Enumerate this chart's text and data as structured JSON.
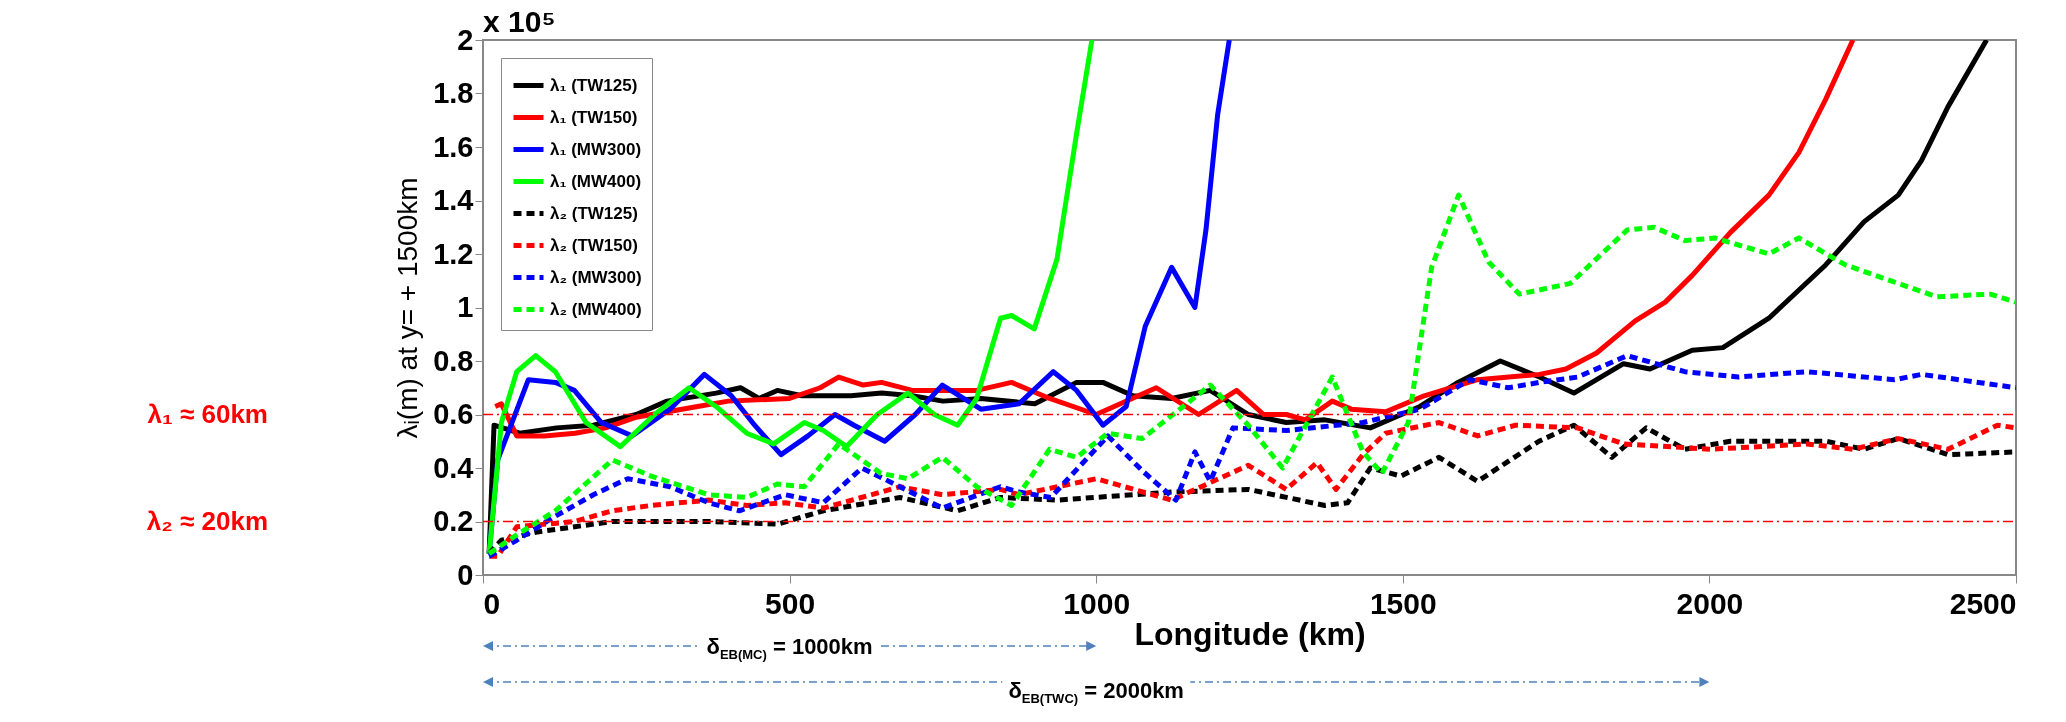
{
  "chart_data": {
    "type": "line",
    "xlabel": "Longitude (km)",
    "ylabel": "λᵢ(m) at y= + 1500km",
    "xlim": [
      0,
      2500
    ],
    "xticks": [
      0,
      500,
      1000,
      1500,
      2000,
      2500
    ],
    "ylim": [
      0,
      2
    ],
    "yticks": [
      0,
      0.2,
      0.4,
      0.6,
      0.8,
      1,
      1.2,
      1.4,
      1.6,
      1.8,
      2
    ],
    "grid": false,
    "legend": "top left",
    "series": [
      {
        "name": "λ₁ (TW125)",
        "color": "#000000",
        "line_style": "solid",
        "x": [
          10,
          18,
          60,
          120,
          180,
          250,
          300,
          380,
          420,
          450,
          480,
          520,
          600,
          650,
          700,
          750,
          812,
          900,
          968,
          1011,
          1060,
          1123,
          1186,
          1248,
          1310,
          1373,
          1447,
          1528,
          1590,
          1659,
          1723,
          1779,
          1860,
          1903,
          1972,
          2022,
          2097,
          2190,
          2252,
          2308,
          2346,
          2389,
          2452
        ],
        "values": [
          0.08,
          0.56,
          0.53,
          0.55,
          0.56,
          0.6,
          0.65,
          0.68,
          0.7,
          0.66,
          0.69,
          0.67,
          0.67,
          0.68,
          0.67,
          0.65,
          0.66,
          0.64,
          0.72,
          0.72,
          0.67,
          0.66,
          0.69,
          0.6,
          0.57,
          0.58,
          0.55,
          0.63,
          0.72,
          0.8,
          0.74,
          0.68,
          0.79,
          0.77,
          0.84,
          0.85,
          0.96,
          1.16,
          1.32,
          1.42,
          1.55,
          1.75,
          2
        ]
      },
      {
        "name": "λ₁ (TW150)",
        "color": "#ff0000",
        "line_style": "solid",
        "x": [
          20,
          30,
          55,
          100,
          150,
          200,
          250,
          350,
          400,
          500,
          550,
          580,
          620,
          650,
          700,
          805,
          862,
          924,
          1000,
          1098,
          1167,
          1229,
          1273,
          1310,
          1341,
          1385,
          1416,
          1472,
          1535,
          1622,
          1723,
          1766,
          1816,
          1879,
          1928,
          1972,
          2034,
          2097,
          2146,
          2190,
          2234
        ],
        "values": [
          0.63,
          0.64,
          0.52,
          0.52,
          0.53,
          0.55,
          0.59,
          0.63,
          0.65,
          0.66,
          0.7,
          0.74,
          0.71,
          0.72,
          0.69,
          0.69,
          0.72,
          0.66,
          0.6,
          0.7,
          0.6,
          0.69,
          0.6,
          0.6,
          0.58,
          0.65,
          0.62,
          0.61,
          0.67,
          0.73,
          0.75,
          0.77,
          0.83,
          0.95,
          1.02,
          1.12,
          1.28,
          1.42,
          1.58,
          1.78,
          2
        ]
      },
      {
        "name": "λ₁ (MW300)",
        "color": "#0000ff",
        "line_style": "solid",
        "x": [
          10,
          24,
          74,
          118,
          149,
          193,
          243,
          305,
          361,
          405,
          443,
          486,
          530,
          574,
          605,
          655,
          705,
          749,
          812,
          874,
          930,
          968,
          1011,
          1049,
          1080,
          1123,
          1161,
          1179,
          1198,
          1217
        ],
        "values": [
          0.08,
          0.43,
          0.73,
          0.72,
          0.69,
          0.57,
          0.52,
          0.62,
          0.75,
          0.67,
          0.56,
          0.45,
          0.52,
          0.6,
          0.56,
          0.5,
          0.6,
          0.71,
          0.62,
          0.64,
          0.76,
          0.69,
          0.56,
          0.63,
          0.93,
          1.15,
          1,
          1.29,
          1.72,
          2
        ]
      },
      {
        "name": "λ₁ (MW400)",
        "color": "#00ff00",
        "line_style": "solid",
        "x": [
          10,
          30,
          55,
          86,
          118,
          168,
          224,
          280,
          336,
          380,
          430,
          474,
          524,
          555,
          593,
          643,
          693,
          736,
          774,
          805,
          844,
          862,
          899,
          936,
          968,
          993
        ],
        "values": [
          0.08,
          0.57,
          0.76,
          0.82,
          0.76,
          0.57,
          0.48,
          0.6,
          0.7,
          0.63,
          0.53,
          0.49,
          0.57,
          0.54,
          0.48,
          0.6,
          0.68,
          0.6,
          0.56,
          0.66,
          0.96,
          0.97,
          0.92,
          1.18,
          1.65,
          2
        ]
      },
      {
        "name": "λ₂ (TW125)",
        "color": "#000000",
        "line_style": "dashed",
        "x": [
          10,
          30,
          86,
          211,
          368,
          480,
          555,
          680,
          774,
          844,
          936,
          1123,
          1248,
          1373,
          1410,
          1447,
          1497,
          1559,
          1622,
          1722,
          1779,
          1841,
          1897,
          1960,
          2034,
          2190,
          2252,
          2308,
          2389,
          2500
        ],
        "values": [
          0.08,
          0.13,
          0.16,
          0.2,
          0.2,
          0.19,
          0.24,
          0.29,
          0.24,
          0.29,
          0.28,
          0.31,
          0.32,
          0.26,
          0.27,
          0.4,
          0.37,
          0.44,
          0.35,
          0.5,
          0.56,
          0.44,
          0.55,
          0.47,
          0.5,
          0.5,
          0.47,
          0.51,
          0.45,
          0.46
        ]
      },
      {
        "name": "λ₂ (TW150)",
        "color": "#ff0000",
        "line_style": "dashed",
        "x": [
          10,
          24,
          55,
          149,
          211,
          274,
          368,
          430,
          493,
          555,
          680,
          749,
          844,
          874,
          1000,
          1123,
          1248,
          1310,
          1360,
          1391,
          1435,
          1472,
          1559,
          1622,
          1684,
          1785,
          1860,
          2003,
          2159,
          2234,
          2308,
          2389,
          2470,
          2500
        ],
        "values": [
          0.07,
          0.07,
          0.18,
          0.2,
          0.24,
          0.26,
          0.28,
          0.26,
          0.27,
          0.25,
          0.33,
          0.3,
          0.32,
          0.3,
          0.36,
          0.28,
          0.41,
          0.32,
          0.42,
          0.32,
          0.45,
          0.53,
          0.57,
          0.52,
          0.56,
          0.55,
          0.49,
          0.47,
          0.49,
          0.47,
          0.51,
          0.47,
          0.56,
          0.55
        ]
      },
      {
        "name": "λ₂ (MW300)",
        "color": "#0000ff",
        "line_style": "dashed",
        "x": [
          10,
          55,
          118,
          180,
          236,
          305,
          368,
          418,
          493,
          555,
          618,
          680,
          749,
          844,
          874,
          926,
          1019,
          1075,
          1130,
          1161,
          1186,
          1223,
          1310,
          1435,
          1528,
          1609,
          1672,
          1723,
          1785,
          1866,
          1960,
          2047,
          2159,
          2302,
          2346,
          2500
        ],
        "values": [
          0.07,
          0.13,
          0.22,
          0.3,
          0.36,
          0.33,
          0.27,
          0.24,
          0.3,
          0.27,
          0.4,
          0.33,
          0.25,
          0.33,
          0.31,
          0.29,
          0.52,
          0.39,
          0.28,
          0.46,
          0.35,
          0.55,
          0.54,
          0.57,
          0.62,
          0.73,
          0.7,
          0.72,
          0.74,
          0.82,
          0.76,
          0.74,
          0.76,
          0.73,
          0.75,
          0.7
        ]
      },
      {
        "name": "λ₂ (MW400)",
        "color": "#00ff00",
        "line_style": "dashed",
        "x": [
          10,
          55,
          118,
          211,
          274,
          368,
          430,
          480,
          524,
          580,
          649,
          693,
          749,
          805,
          862,
          924,
          968,
          1019,
          1075,
          1142,
          1186,
          1248,
          1304,
          1385,
          1435,
          1466,
          1509,
          1547,
          1591,
          1640,
          1690,
          1773,
          1866,
          1910,
          1960,
          2009,
          2097,
          2146,
          2221,
          2283,
          2371,
          2458,
          2500
        ],
        "values": [
          0.08,
          0.15,
          0.24,
          0.43,
          0.37,
          0.3,
          0.29,
          0.34,
          0.33,
          0.49,
          0.38,
          0.36,
          0.44,
          0.33,
          0.26,
          0.47,
          0.44,
          0.53,
          0.51,
          0.63,
          0.71,
          0.56,
          0.4,
          0.74,
          0.46,
          0.38,
          0.57,
          1.15,
          1.42,
          1.17,
          1.05,
          1.09,
          1.29,
          1.3,
          1.25,
          1.26,
          1.2,
          1.26,
          1.16,
          1.11,
          1.04,
          1.05,
          1.02
        ]
      }
    ],
    "ref_lines": [
      {
        "axis": "y",
        "value": 0.6,
        "label": "λ₁ ≈ 60km",
        "color": "#ff0000",
        "line_style": "dashed"
      },
      {
        "axis": "y",
        "value": 0.2,
        "label": "λ₂ ≈ 20km",
        "color": "#ff0000",
        "line_style": "dashed"
      }
    ],
    "annotations": [
      "x 10⁵",
      "δ$_{EB(MC)}$ = 1000km",
      "δ$_{EB(TWC)}$ = 2000km"
    ]
  }
}
